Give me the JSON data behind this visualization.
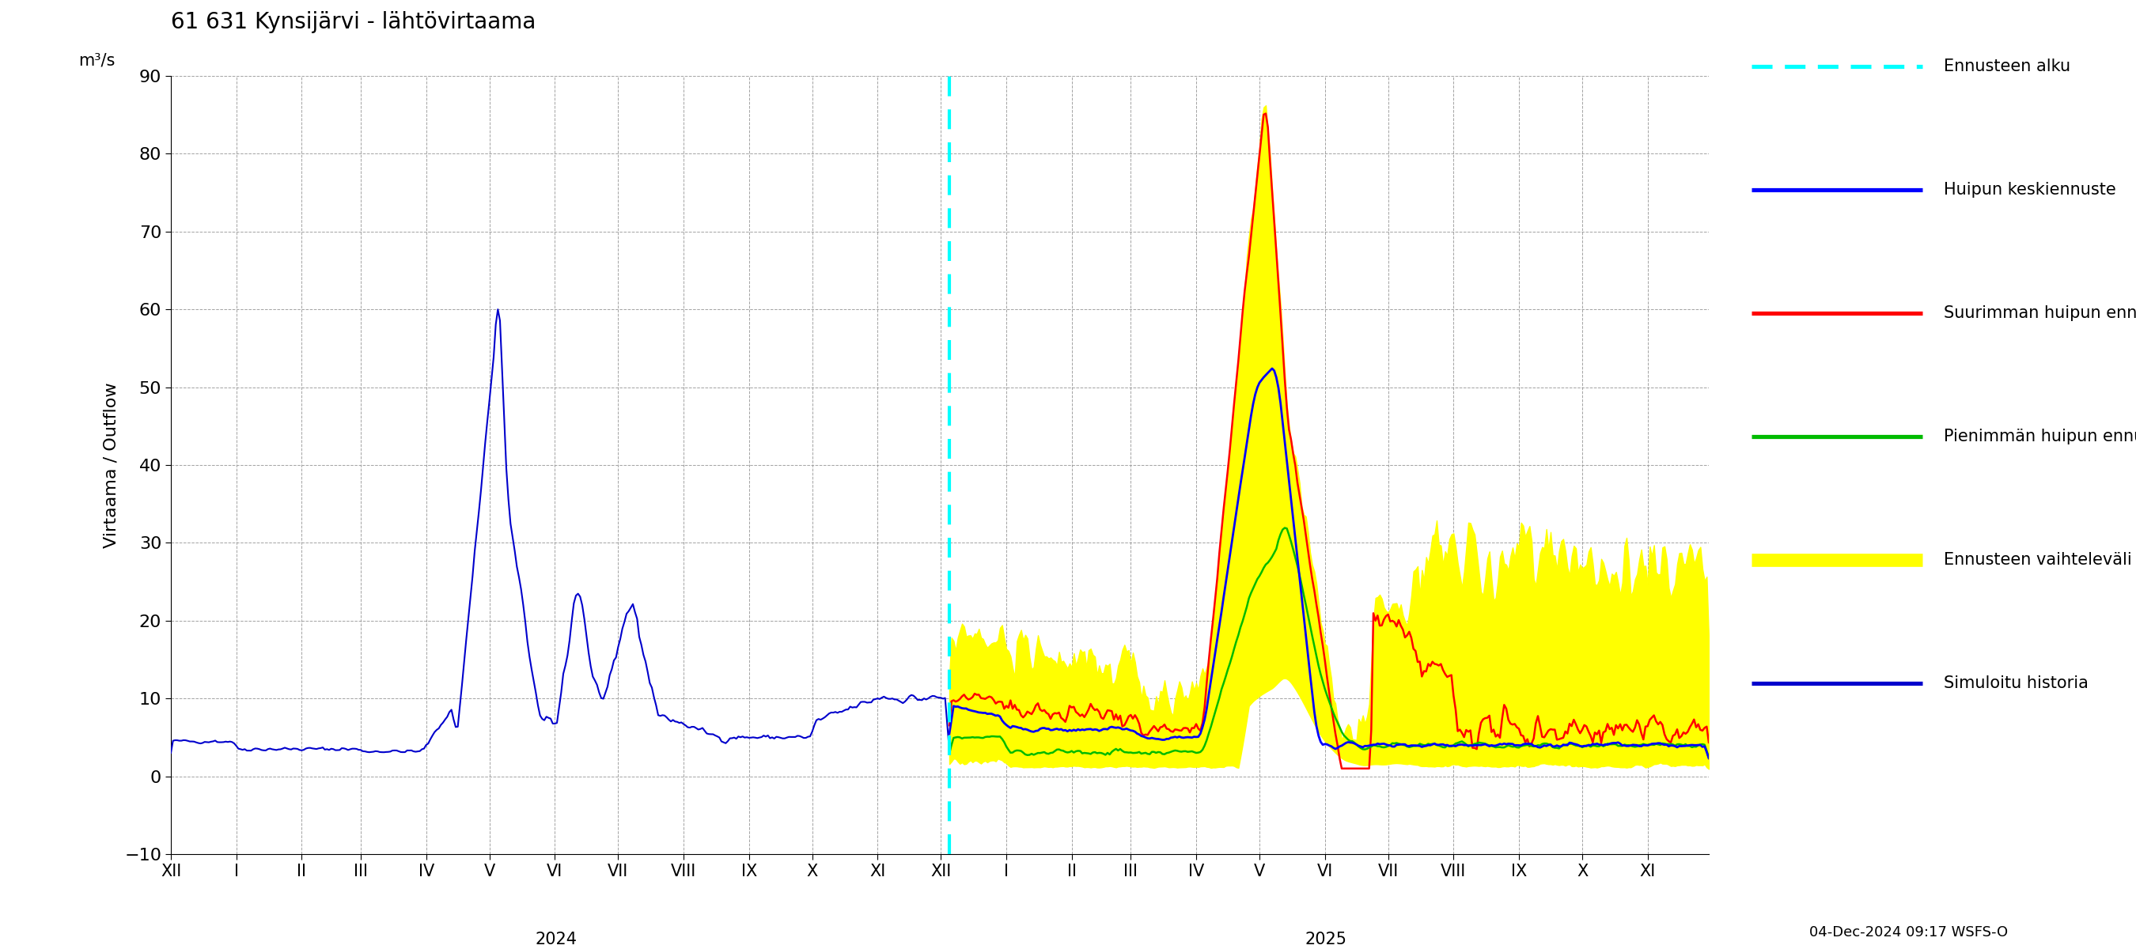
{
  "title": "61 631 Kynsijärvi - lähtövirtaama",
  "ylabel_left": "Virtaama / Outflow",
  "m3s_label": "m³/s",
  "ylim": [
    -10,
    90
  ],
  "yticks": [
    -10,
    0,
    10,
    20,
    30,
    40,
    50,
    60,
    70,
    80,
    90
  ],
  "background_color": "#ffffff",
  "grid_color": "#999999",
  "timestamp_text": "04-Dec-2024 09:17 WSFS-O",
  "legend_items": [
    {
      "label": "Ennusteen alku",
      "color": "#00ffff",
      "linestyle": "dashed",
      "linewidth": 2.5
    },
    {
      "label": "Huipun keskiennuste",
      "color": "#0000ff",
      "linestyle": "solid",
      "linewidth": 2.5
    },
    {
      "label": "Suurimman huipun ennuste",
      "color": "#ff0000",
      "linestyle": "solid",
      "linewidth": 2.5
    },
    {
      "label": "Pienimmän huipun ennuste",
      "color": "#00bb00",
      "linestyle": "solid",
      "linewidth": 2.5
    },
    {
      "label": "Ennusteen vaihteleväli",
      "color": "#ffff00",
      "linestyle": "solid",
      "linewidth": 8
    },
    {
      "label": "Simuloitu historia",
      "color": "#0000cc",
      "linestyle": "solid",
      "linewidth": 2.5
    }
  ],
  "month_labels": [
    "XII",
    "I",
    "II",
    "III",
    "IV",
    "V",
    "VI",
    "VII",
    "VIII",
    "IX",
    "X",
    "XI",
    "XII",
    "I",
    "II",
    "III",
    "IV",
    "V",
    "VI",
    "VII",
    "VIII",
    "IX",
    "X",
    "XI"
  ],
  "year_2024_label": "2024",
  "year_2025_label": "2025"
}
